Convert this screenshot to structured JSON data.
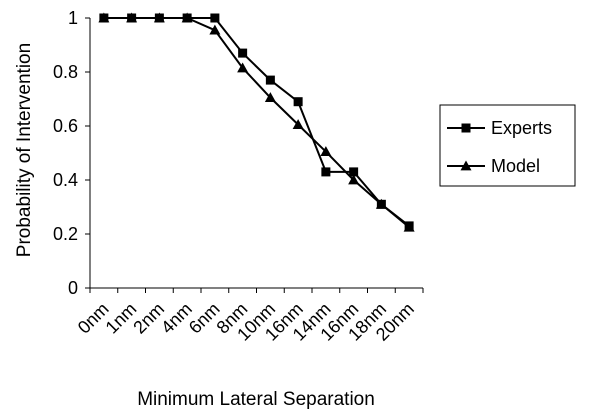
{
  "chart_data": {
    "type": "line",
    "title": "",
    "xlabel": "Minimum Lateral Separation",
    "ylabel": "Probability of Intervention",
    "categories": [
      "0nm",
      "1nm",
      "2nm",
      "4nm",
      "6nm",
      "8nm",
      "10nm",
      "16nm",
      "14nm",
      "16nm",
      "18nm",
      "20nm"
    ],
    "ylim": [
      0,
      1
    ],
    "yticks": [
      "0",
      "0.2",
      "0.4",
      "0.6",
      "0.8",
      "1"
    ],
    "grid": false,
    "legend_position": "right",
    "series": [
      {
        "name": "Experts",
        "marker": "square",
        "color": "#000000",
        "values": [
          1.0,
          1.0,
          1.0,
          1.0,
          1.0,
          0.87,
          0.77,
          0.69,
          0.43,
          0.43,
          0.31,
          0.23
        ]
      },
      {
        "name": "Model",
        "marker": "triangle",
        "color": "#000000",
        "values": [
          1.0,
          1.0,
          1.0,
          1.0,
          0.955,
          0.815,
          0.705,
          0.605,
          0.505,
          0.4,
          0.31,
          0.225
        ]
      }
    ]
  }
}
